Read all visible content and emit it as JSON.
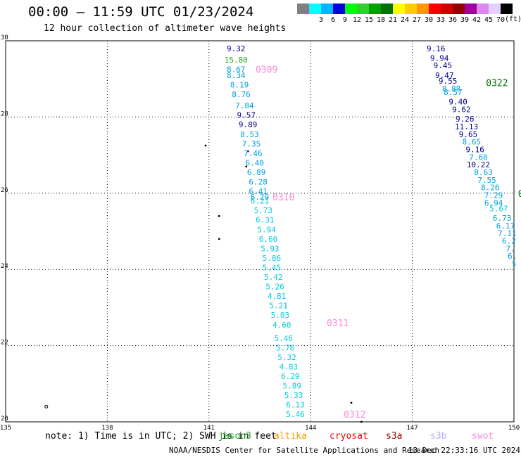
{
  "header": {
    "title": "00:00 – 11:59 UTC 01/23/2024",
    "subtitle": "12 hour collection of altimeter wave heights"
  },
  "colorbar": {
    "unit": "(ft)",
    "bins": [
      {
        "label": "",
        "color": "#808080"
      },
      {
        "label": "3",
        "color": "#00ffff"
      },
      {
        "label": "6",
        "color": "#00b4ff"
      },
      {
        "label": "9",
        "color": "#0000e0"
      },
      {
        "label": "12",
        "color": "#00ff00"
      },
      {
        "label": "15",
        "color": "#33cc33"
      },
      {
        "label": "18",
        "color": "#00a000"
      },
      {
        "label": "21",
        "color": "#007000"
      },
      {
        "label": "24",
        "color": "#ffff00"
      },
      {
        "label": "27",
        "color": "#ffcc00"
      },
      {
        "label": "30",
        "color": "#ff9900"
      },
      {
        "label": "33",
        "color": "#ff0000"
      },
      {
        "label": "36",
        "color": "#d00000"
      },
      {
        "label": "39",
        "color": "#900000"
      },
      {
        "label": "42",
        "color": "#a000a0"
      },
      {
        "label": "45",
        "color": "#dd88ee"
      },
      {
        "label": "70",
        "color": "#e6d0ff"
      },
      {
        "label": "",
        "color": "#000000"
      }
    ]
  },
  "axes": {
    "lon_range": [
      135,
      150
    ],
    "lat_range": [
      20,
      30
    ],
    "x_ticks": [
      "135",
      "138",
      "141",
      "144",
      "147",
      "150"
    ],
    "y_ticks": [
      "20",
      "22",
      "24",
      "26",
      "28",
      "30"
    ]
  },
  "colors": {
    "navy": "#00008b",
    "blue": "#00a0e0",
    "cyan": "#00ccdd",
    "green_mid": "#22aa22",
    "green_dark": "#007000",
    "pink": "#ff88dd"
  },
  "tracks": [
    {
      "label": "0309",
      "label_lon": 142.7,
      "label_lat": 29.25,
      "label_color": "#ff88dd"
    },
    {
      "label": "0310",
      "label_lon": 143.2,
      "label_lat": 25.9,
      "label_color": "#ff88dd"
    },
    {
      "label": "0311",
      "label_lon": 144.8,
      "label_lat": 22.6,
      "label_color": "#ff88dd"
    },
    {
      "label": "0312",
      "label_lon": 145.3,
      "label_lat": 20.2,
      "label_color": "#ff88dd"
    },
    {
      "label": "0322",
      "label_lon": 149.5,
      "label_lat": 28.9,
      "label_color": "#007000"
    },
    {
      "label": "0",
      "label_lon": 150.2,
      "label_lat": 26.0,
      "label_color": "#007000"
    }
  ],
  "points": [
    {
      "v": "9.32",
      "lon": 141.8,
      "lat": 29.8,
      "c": "#00008b"
    },
    {
      "v": "15.80",
      "lon": 141.8,
      "lat": 29.5,
      "c": "#22aa22"
    },
    {
      "v": "8.67",
      "lon": 141.8,
      "lat": 29.25,
      "c": "#00a0e0"
    },
    {
      "v": "8.34",
      "lon": 141.8,
      "lat": 29.1,
      "c": "#00a0e0"
    },
    {
      "v": "8.19",
      "lon": 141.9,
      "lat": 28.85,
      "c": "#00a0e0"
    },
    {
      "v": "8.76",
      "lon": 141.95,
      "lat": 28.6,
      "c": "#00a0e0"
    },
    {
      "v": "7.84",
      "lon": 142.05,
      "lat": 28.3,
      "c": "#00a0e0"
    },
    {
      "v": "9.57",
      "lon": 142.1,
      "lat": 28.05,
      "c": "#00008b"
    },
    {
      "v": "9.89",
      "lon": 142.15,
      "lat": 27.8,
      "c": "#00008b"
    },
    {
      "v": "8.53",
      "lon": 142.2,
      "lat": 27.55,
      "c": "#00a0e0"
    },
    {
      "v": "7.35",
      "lon": 142.25,
      "lat": 27.3,
      "c": "#00a0e0"
    },
    {
      "v": "7.46",
      "lon": 142.3,
      "lat": 27.05,
      "c": "#00a0e0"
    },
    {
      "v": "6.40",
      "lon": 142.35,
      "lat": 26.8,
      "c": "#00a0e0"
    },
    {
      "v": "6.89",
      "lon": 142.4,
      "lat": 26.55,
      "c": "#00a0e0"
    },
    {
      "v": "6.28",
      "lon": 142.45,
      "lat": 26.3,
      "c": "#00a0e0"
    },
    {
      "v": "6.41",
      "lon": 142.45,
      "lat": 26.05,
      "c": "#00a0e0"
    },
    {
      "v": "6.29",
      "lon": 142.5,
      "lat": 25.9,
      "c": "#00a0e0"
    },
    {
      "v": "6.21",
      "lon": 142.5,
      "lat": 25.8,
      "c": "#00ccdd"
    },
    {
      "v": "5.73",
      "lon": 142.6,
      "lat": 25.55,
      "c": "#00ccdd"
    },
    {
      "v": "6.31",
      "lon": 142.65,
      "lat": 25.3,
      "c": "#00ccdd"
    },
    {
      "v": "5.94",
      "lon": 142.7,
      "lat": 25.05,
      "c": "#00ccdd"
    },
    {
      "v": "6.60",
      "lon": 142.75,
      "lat": 24.8,
      "c": "#00ccdd"
    },
    {
      "v": "5.93",
      "lon": 142.8,
      "lat": 24.55,
      "c": "#00ccdd"
    },
    {
      "v": "5.86",
      "lon": 142.85,
      "lat": 24.3,
      "c": "#00ccdd"
    },
    {
      "v": "5.45",
      "lon": 142.85,
      "lat": 24.05,
      "c": "#00ccdd"
    },
    {
      "v": "5.42",
      "lon": 142.9,
      "lat": 23.8,
      "c": "#00ccdd"
    },
    {
      "v": "5.26",
      "lon": 142.95,
      "lat": 23.55,
      "c": "#00ccdd"
    },
    {
      "v": "4.81",
      "lon": 143.0,
      "lat": 23.3,
      "c": "#00ccdd"
    },
    {
      "v": "5.21",
      "lon": 143.05,
      "lat": 23.05,
      "c": "#00ccdd"
    },
    {
      "v": "5.03",
      "lon": 143.1,
      "lat": 22.8,
      "c": "#00ccdd"
    },
    {
      "v": "4.60",
      "lon": 143.15,
      "lat": 22.55,
      "c": "#00ccdd"
    },
    {
      "v": "5.46",
      "lon": 143.2,
      "lat": 22.2,
      "c": "#00ccdd"
    },
    {
      "v": "5.76",
      "lon": 143.25,
      "lat": 21.95,
      "c": "#00ccdd"
    },
    {
      "v": "5.32",
      "lon": 143.3,
      "lat": 21.7,
      "c": "#00ccdd"
    },
    {
      "v": "4.83",
      "lon": 143.35,
      "lat": 21.45,
      "c": "#00ccdd"
    },
    {
      "v": "6.29",
      "lon": 143.4,
      "lat": 21.2,
      "c": "#00ccdd"
    },
    {
      "v": "5.89",
      "lon": 143.45,
      "lat": 20.95,
      "c": "#00ccdd"
    },
    {
      "v": "5.33",
      "lon": 143.5,
      "lat": 20.7,
      "c": "#00ccdd"
    },
    {
      "v": "6.13",
      "lon": 143.55,
      "lat": 20.45,
      "c": "#00ccdd"
    },
    {
      "v": "5.46",
      "lon": 143.55,
      "lat": 20.2,
      "c": "#00ccdd"
    },
    {
      "v": "9.16",
      "lon": 147.7,
      "lat": 29.8,
      "c": "#00008b"
    },
    {
      "v": "9.94",
      "lon": 147.8,
      "lat": 29.55,
      "c": "#00008b"
    },
    {
      "v": "9.45",
      "lon": 147.9,
      "lat": 29.35,
      "c": "#00008b"
    },
    {
      "v": "9.47",
      "lon": 147.95,
      "lat": 29.1,
      "c": "#00008b"
    },
    {
      "v": "9.55",
      "lon": 148.05,
      "lat": 28.95,
      "c": "#00008b"
    },
    {
      "v": "8.88",
      "lon": 148.15,
      "lat": 28.75,
      "c": "#00a0e0"
    },
    {
      "v": "8.57",
      "lon": 148.2,
      "lat": 28.65,
      "c": "#00a0e0"
    },
    {
      "v": "9.40",
      "lon": 148.35,
      "lat": 28.4,
      "c": "#00008b"
    },
    {
      "v": "9.62",
      "lon": 148.45,
      "lat": 28.2,
      "c": "#00008b"
    },
    {
      "v": "9.26",
      "lon": 148.55,
      "lat": 27.95,
      "c": "#00008b"
    },
    {
      "v": "11.13",
      "lon": 148.6,
      "lat": 27.75,
      "c": "#00008b"
    },
    {
      "v": "9.65",
      "lon": 148.65,
      "lat": 27.55,
      "c": "#00008b"
    },
    {
      "v": "8.65",
      "lon": 148.75,
      "lat": 27.35,
      "c": "#00a0e0"
    },
    {
      "v": "9.16",
      "lon": 148.85,
      "lat": 27.15,
      "c": "#00008b"
    },
    {
      "v": "7.60",
      "lon": 148.95,
      "lat": 26.95,
      "c": "#00a0e0"
    },
    {
      "v": "10.22",
      "lon": 148.95,
      "lat": 26.75,
      "c": "#00008b"
    },
    {
      "v": "8.63",
      "lon": 149.1,
      "lat": 26.55,
      "c": "#00a0e0"
    },
    {
      "v": "7.55",
      "lon": 149.2,
      "lat": 26.35,
      "c": "#00a0e0"
    },
    {
      "v": "8.26",
      "lon": 149.3,
      "lat": 26.15,
      "c": "#00a0e0"
    },
    {
      "v": "7.29",
      "lon": 149.4,
      "lat": 25.95,
      "c": "#00a0e0"
    },
    {
      "v": "6.94",
      "lon": 149.4,
      "lat": 25.75,
      "c": "#00a0e0"
    },
    {
      "v": "5.67",
      "lon": 149.55,
      "lat": 25.6,
      "c": "#00ccdd"
    },
    {
      "v": "6.73",
      "lon": 149.65,
      "lat": 25.35,
      "c": "#00a0e0"
    },
    {
      "v": "6.17",
      "lon": 149.75,
      "lat": 25.15,
      "c": "#00a0e0"
    },
    {
      "v": "7.11",
      "lon": 149.8,
      "lat": 24.95,
      "c": "#00a0e0"
    },
    {
      "v": "6.2",
      "lon": 149.85,
      "lat": 24.75,
      "c": "#00a0e0"
    },
    {
      "v": "7.",
      "lon": 149.9,
      "lat": 24.55,
      "c": "#00a0e0"
    },
    {
      "v": "6.",
      "lon": 149.95,
      "lat": 24.35,
      "c": "#00a0e0"
    },
    {
      "v": "5",
      "lon": 150.0,
      "lat": 24.15,
      "c": "#00ccdd"
    }
  ],
  "islands": [
    {
      "lon": 141.3,
      "lat": 25.4
    },
    {
      "lon": 141.3,
      "lat": 24.8
    },
    {
      "lon": 142.15,
      "lat": 27.1
    },
    {
      "lon": 142.1,
      "lat": 26.7
    },
    {
      "lon": 140.9,
      "lat": 27.25
    },
    {
      "lon": 145.2,
      "lat": 20.5
    },
    {
      "lon": 145.5,
      "lat": 20.0
    },
    {
      "lon": 136.2,
      "lat": 20.4,
      "ring": true
    }
  ],
  "note": "note: 1) Time is in UTC; 2) SWH is in feet",
  "legend": [
    {
      "name": "jason3",
      "color": "#22aa22"
    },
    {
      "name": "altika",
      "color": "#ff9900"
    },
    {
      "name": "cryosat",
      "color": "#ee0000"
    },
    {
      "name": "s3a",
      "color": "#990000"
    },
    {
      "name": "s3b",
      "color": "#bbaaff"
    },
    {
      "name": "swot",
      "color": "#ff88dd"
    }
  ],
  "footer": {
    "credit": "NOAA/NESDIS Center for Satellite Applications and Research",
    "timestamp": "13 Dec 22:33:16 UTC 2024"
  }
}
